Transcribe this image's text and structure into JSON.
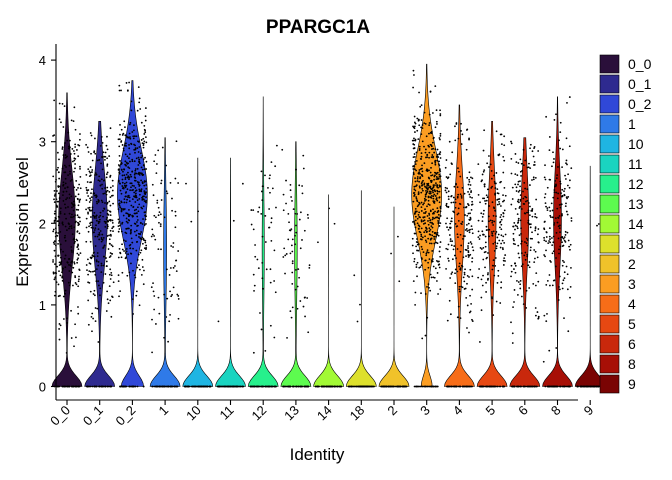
{
  "chart_data": {
    "type": "violin",
    "title": "PPARGC1A",
    "xlabel": "Identity",
    "ylabel": "Expression Level",
    "ylim": [
      -0.15,
      4.15
    ],
    "y_ticks": [
      0,
      1,
      2,
      3,
      4
    ],
    "y_tick_labels": [
      "0",
      "1",
      "2",
      "3",
      "4"
    ],
    "grid": false,
    "legend_position": "right",
    "categories": [
      {
        "name": "0_0",
        "color": "#2a0f3a",
        "max": 3.6,
        "detected_frac": 0.72
      },
      {
        "name": "0_1",
        "color": "#2e2a8f",
        "max": 3.25,
        "detected_frac": 0.7
      },
      {
        "name": "0_2",
        "color": "#3048d8",
        "max": 3.75,
        "detected_frac": 0.85
      },
      {
        "name": "1",
        "color": "#2f7ae8",
        "max": 3.05,
        "detected_frac": 0.35
      },
      {
        "name": "10",
        "color": "#1fb5e2",
        "max": 2.8,
        "detected_frac": 0.05
      },
      {
        "name": "11",
        "color": "#1ad4c0",
        "max": 2.8,
        "detected_frac": 0.05
      },
      {
        "name": "12",
        "color": "#27f08c",
        "max": 3.55,
        "detected_frac": 0.28
      },
      {
        "name": "13",
        "color": "#5dfb4f",
        "max": 3.0,
        "detected_frac": 0.32
      },
      {
        "name": "14",
        "color": "#a2f935",
        "max": 2.35,
        "detected_frac": 0.02
      },
      {
        "name": "18",
        "color": "#dde02c",
        "max": 2.4,
        "detected_frac": 0.02
      },
      {
        "name": "2",
        "color": "#f0c22a",
        "max": 2.2,
        "detected_frac": 0.01
      },
      {
        "name": "3",
        "color": "#fb9d22",
        "max": 3.95,
        "detected_frac": 0.92
      },
      {
        "name": "4",
        "color": "#f76d18",
        "max": 3.45,
        "detected_frac": 0.6
      },
      {
        "name": "5",
        "color": "#e64812",
        "max": 3.25,
        "detected_frac": 0.55
      },
      {
        "name": "6",
        "color": "#c9280c",
        "max": 3.05,
        "detected_frac": 0.55
      },
      {
        "name": "8",
        "color": "#a70f06",
        "max": 3.55,
        "detected_frac": 0.55
      },
      {
        "name": "9",
        "color": "#7a0403",
        "max": 2.7,
        "detected_frac": 0.03
      }
    ]
  }
}
